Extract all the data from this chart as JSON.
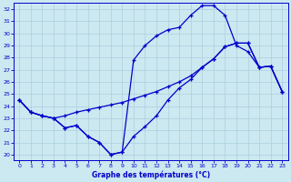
{
  "background_color": "#cce8f0",
  "grid_color": "#aacfdf",
  "line_color": "#0000cc",
  "xlabel": "Graphe des températures (°C)",
  "xlabel_color": "#0000cc",
  "ylabel_color": "#0000cc",
  "xlim": [
    -0.5,
    23.5
  ],
  "ylim": [
    19.5,
    32.5
  ],
  "xticks": [
    0,
    1,
    2,
    3,
    4,
    5,
    6,
    7,
    8,
    9,
    10,
    11,
    12,
    13,
    14,
    15,
    16,
    17,
    18,
    19,
    20,
    21,
    22,
    23
  ],
  "yticks": [
    20,
    21,
    22,
    23,
    24,
    25,
    26,
    27,
    28,
    29,
    30,
    31,
    32
  ],
  "line1_x": [
    0,
    1,
    2,
    3,
    4,
    5,
    6,
    7,
    8,
    9,
    10,
    11,
    12,
    13,
    14,
    15,
    16,
    17,
    18,
    19,
    20,
    21,
    22,
    23
  ],
  "line1_y": [
    24.5,
    23.5,
    23.2,
    23.0,
    22.2,
    22.4,
    21.5,
    21.0,
    20.0,
    20.2,
    27.8,
    29.0,
    29.8,
    30.3,
    30.5,
    31.5,
    32.3,
    32.3,
    31.5,
    29.0,
    28.5,
    27.2,
    27.3,
    25.2
  ],
  "line2_x": [
    0,
    1,
    2,
    3,
    4,
    5,
    6,
    7,
    8,
    9,
    10,
    11,
    12,
    13,
    14,
    15,
    16,
    17,
    18,
    19,
    20,
    21,
    22,
    23
  ],
  "line2_y": [
    24.5,
    23.5,
    23.2,
    23.0,
    23.2,
    23.5,
    23.7,
    23.9,
    24.1,
    24.3,
    24.6,
    24.9,
    25.2,
    25.6,
    26.0,
    26.5,
    27.2,
    27.9,
    28.9,
    29.2,
    29.2,
    27.2,
    27.3,
    25.2
  ],
  "line3_x": [
    0,
    1,
    2,
    3,
    4,
    5,
    6,
    7,
    8,
    9,
    10,
    11,
    12,
    13,
    14,
    15,
    16,
    17,
    18,
    19,
    20,
    21,
    22,
    23
  ],
  "line3_y": [
    24.5,
    23.5,
    23.2,
    23.0,
    22.2,
    22.4,
    21.5,
    21.0,
    20.0,
    20.2,
    21.5,
    22.3,
    23.2,
    24.5,
    25.5,
    26.2,
    27.2,
    27.9,
    28.9,
    29.2,
    29.2,
    27.2,
    27.3,
    25.2
  ]
}
